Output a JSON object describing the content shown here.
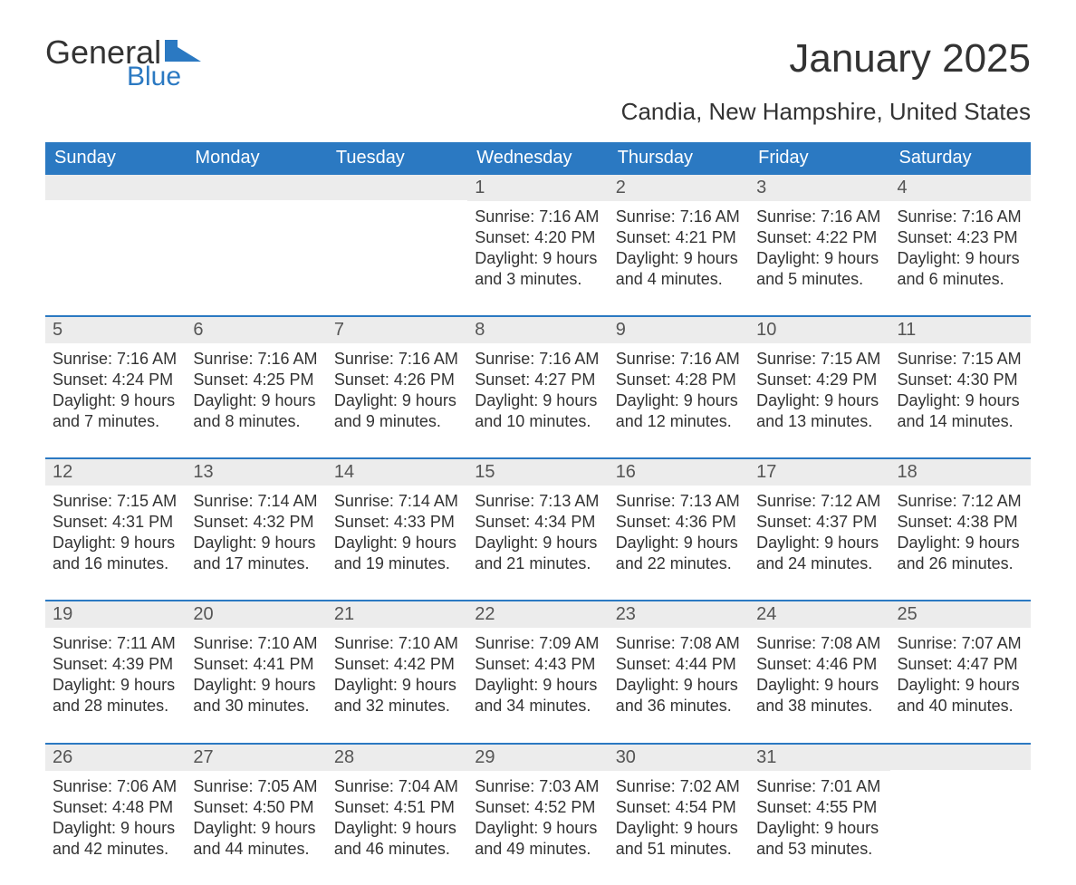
{
  "logo": {
    "general": "General",
    "blue": "Blue"
  },
  "title": {
    "month": "January 2025",
    "location": "Candia, New Hampshire, United States"
  },
  "colors": {
    "header_bg": "#2b79c2",
    "header_text": "#ffffff",
    "daynum_bg": "#ececec",
    "daynum_text": "#555555",
    "body_text": "#333333",
    "week_border": "#2b79c2",
    "logo_blue": "#2b79c2",
    "page_bg": "#ffffff"
  },
  "typography": {
    "month_fontsize": 44,
    "location_fontsize": 26,
    "dayheader_fontsize": 20,
    "daynum_fontsize": 20,
    "body_fontsize": 18
  },
  "layout": {
    "columns": 7,
    "rows": 5
  },
  "day_names": [
    "Sunday",
    "Monday",
    "Tuesday",
    "Wednesday",
    "Thursday",
    "Friday",
    "Saturday"
  ],
  "weeks": [
    [
      {
        "num": "",
        "sunrise": "",
        "sunset": "",
        "daylight1": "",
        "daylight2": ""
      },
      {
        "num": "",
        "sunrise": "",
        "sunset": "",
        "daylight1": "",
        "daylight2": ""
      },
      {
        "num": "",
        "sunrise": "",
        "sunset": "",
        "daylight1": "",
        "daylight2": ""
      },
      {
        "num": "1",
        "sunrise": "Sunrise: 7:16 AM",
        "sunset": "Sunset: 4:20 PM",
        "daylight1": "Daylight: 9 hours",
        "daylight2": "and 3 minutes."
      },
      {
        "num": "2",
        "sunrise": "Sunrise: 7:16 AM",
        "sunset": "Sunset: 4:21 PM",
        "daylight1": "Daylight: 9 hours",
        "daylight2": "and 4 minutes."
      },
      {
        "num": "3",
        "sunrise": "Sunrise: 7:16 AM",
        "sunset": "Sunset: 4:22 PM",
        "daylight1": "Daylight: 9 hours",
        "daylight2": "and 5 minutes."
      },
      {
        "num": "4",
        "sunrise": "Sunrise: 7:16 AM",
        "sunset": "Sunset: 4:23 PM",
        "daylight1": "Daylight: 9 hours",
        "daylight2": "and 6 minutes."
      }
    ],
    [
      {
        "num": "5",
        "sunrise": "Sunrise: 7:16 AM",
        "sunset": "Sunset: 4:24 PM",
        "daylight1": "Daylight: 9 hours",
        "daylight2": "and 7 minutes."
      },
      {
        "num": "6",
        "sunrise": "Sunrise: 7:16 AM",
        "sunset": "Sunset: 4:25 PM",
        "daylight1": "Daylight: 9 hours",
        "daylight2": "and 8 minutes."
      },
      {
        "num": "7",
        "sunrise": "Sunrise: 7:16 AM",
        "sunset": "Sunset: 4:26 PM",
        "daylight1": "Daylight: 9 hours",
        "daylight2": "and 9 minutes."
      },
      {
        "num": "8",
        "sunrise": "Sunrise: 7:16 AM",
        "sunset": "Sunset: 4:27 PM",
        "daylight1": "Daylight: 9 hours",
        "daylight2": "and 10 minutes."
      },
      {
        "num": "9",
        "sunrise": "Sunrise: 7:16 AM",
        "sunset": "Sunset: 4:28 PM",
        "daylight1": "Daylight: 9 hours",
        "daylight2": "and 12 minutes."
      },
      {
        "num": "10",
        "sunrise": "Sunrise: 7:15 AM",
        "sunset": "Sunset: 4:29 PM",
        "daylight1": "Daylight: 9 hours",
        "daylight2": "and 13 minutes."
      },
      {
        "num": "11",
        "sunrise": "Sunrise: 7:15 AM",
        "sunset": "Sunset: 4:30 PM",
        "daylight1": "Daylight: 9 hours",
        "daylight2": "and 14 minutes."
      }
    ],
    [
      {
        "num": "12",
        "sunrise": "Sunrise: 7:15 AM",
        "sunset": "Sunset: 4:31 PM",
        "daylight1": "Daylight: 9 hours",
        "daylight2": "and 16 minutes."
      },
      {
        "num": "13",
        "sunrise": "Sunrise: 7:14 AM",
        "sunset": "Sunset: 4:32 PM",
        "daylight1": "Daylight: 9 hours",
        "daylight2": "and 17 minutes."
      },
      {
        "num": "14",
        "sunrise": "Sunrise: 7:14 AM",
        "sunset": "Sunset: 4:33 PM",
        "daylight1": "Daylight: 9 hours",
        "daylight2": "and 19 minutes."
      },
      {
        "num": "15",
        "sunrise": "Sunrise: 7:13 AM",
        "sunset": "Sunset: 4:34 PM",
        "daylight1": "Daylight: 9 hours",
        "daylight2": "and 21 minutes."
      },
      {
        "num": "16",
        "sunrise": "Sunrise: 7:13 AM",
        "sunset": "Sunset: 4:36 PM",
        "daylight1": "Daylight: 9 hours",
        "daylight2": "and 22 minutes."
      },
      {
        "num": "17",
        "sunrise": "Sunrise: 7:12 AM",
        "sunset": "Sunset: 4:37 PM",
        "daylight1": "Daylight: 9 hours",
        "daylight2": "and 24 minutes."
      },
      {
        "num": "18",
        "sunrise": "Sunrise: 7:12 AM",
        "sunset": "Sunset: 4:38 PM",
        "daylight1": "Daylight: 9 hours",
        "daylight2": "and 26 minutes."
      }
    ],
    [
      {
        "num": "19",
        "sunrise": "Sunrise: 7:11 AM",
        "sunset": "Sunset: 4:39 PM",
        "daylight1": "Daylight: 9 hours",
        "daylight2": "and 28 minutes."
      },
      {
        "num": "20",
        "sunrise": "Sunrise: 7:10 AM",
        "sunset": "Sunset: 4:41 PM",
        "daylight1": "Daylight: 9 hours",
        "daylight2": "and 30 minutes."
      },
      {
        "num": "21",
        "sunrise": "Sunrise: 7:10 AM",
        "sunset": "Sunset: 4:42 PM",
        "daylight1": "Daylight: 9 hours",
        "daylight2": "and 32 minutes."
      },
      {
        "num": "22",
        "sunrise": "Sunrise: 7:09 AM",
        "sunset": "Sunset: 4:43 PM",
        "daylight1": "Daylight: 9 hours",
        "daylight2": "and 34 minutes."
      },
      {
        "num": "23",
        "sunrise": "Sunrise: 7:08 AM",
        "sunset": "Sunset: 4:44 PM",
        "daylight1": "Daylight: 9 hours",
        "daylight2": "and 36 minutes."
      },
      {
        "num": "24",
        "sunrise": "Sunrise: 7:08 AM",
        "sunset": "Sunset: 4:46 PM",
        "daylight1": "Daylight: 9 hours",
        "daylight2": "and 38 minutes."
      },
      {
        "num": "25",
        "sunrise": "Sunrise: 7:07 AM",
        "sunset": "Sunset: 4:47 PM",
        "daylight1": "Daylight: 9 hours",
        "daylight2": "and 40 minutes."
      }
    ],
    [
      {
        "num": "26",
        "sunrise": "Sunrise: 7:06 AM",
        "sunset": "Sunset: 4:48 PM",
        "daylight1": "Daylight: 9 hours",
        "daylight2": "and 42 minutes."
      },
      {
        "num": "27",
        "sunrise": "Sunrise: 7:05 AM",
        "sunset": "Sunset: 4:50 PM",
        "daylight1": "Daylight: 9 hours",
        "daylight2": "and 44 minutes."
      },
      {
        "num": "28",
        "sunrise": "Sunrise: 7:04 AM",
        "sunset": "Sunset: 4:51 PM",
        "daylight1": "Daylight: 9 hours",
        "daylight2": "and 46 minutes."
      },
      {
        "num": "29",
        "sunrise": "Sunrise: 7:03 AM",
        "sunset": "Sunset: 4:52 PM",
        "daylight1": "Daylight: 9 hours",
        "daylight2": "and 49 minutes."
      },
      {
        "num": "30",
        "sunrise": "Sunrise: 7:02 AM",
        "sunset": "Sunset: 4:54 PM",
        "daylight1": "Daylight: 9 hours",
        "daylight2": "and 51 minutes."
      },
      {
        "num": "31",
        "sunrise": "Sunrise: 7:01 AM",
        "sunset": "Sunset: 4:55 PM",
        "daylight1": "Daylight: 9 hours",
        "daylight2": "and 53 minutes."
      },
      {
        "num": "",
        "sunrise": "",
        "sunset": "",
        "daylight1": "",
        "daylight2": ""
      }
    ]
  ]
}
